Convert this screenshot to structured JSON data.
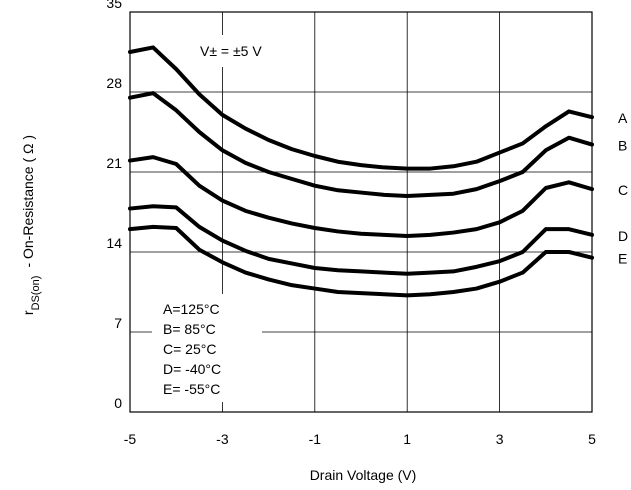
{
  "chart_data": {
    "type": "line",
    "title": "",
    "xlabel": "Drain Voltage (V)",
    "ylabel": {
      "main": "r",
      "sub": "DS(on)",
      "rest": "- On-Resistance ( Ω )"
    },
    "xlim": [
      -5,
      5
    ],
    "ylim": [
      0,
      35
    ],
    "xticks": [
      -5,
      -3,
      -1,
      1,
      3,
      5
    ],
    "yticks": [
      0,
      7,
      14,
      21,
      28,
      35
    ],
    "grid": true,
    "supply_note": "V± = ±5 V",
    "x": [
      -5,
      -4.5,
      -4,
      -3.5,
      -3,
      -2.5,
      -2,
      -1.5,
      -1,
      -0.5,
      0,
      0.5,
      1,
      1.5,
      2,
      2.5,
      3,
      3.5,
      4,
      4.5,
      5
    ],
    "series": [
      {
        "name": "A",
        "values": [
          31.5,
          31.9,
          30.0,
          27.8,
          26.0,
          24.8,
          23.8,
          23.0,
          22.4,
          21.9,
          21.6,
          21.4,
          21.3,
          21.3,
          21.5,
          21.9,
          22.7,
          23.5,
          25.0,
          26.3,
          25.8
        ]
      },
      {
        "name": "B",
        "values": [
          27.5,
          27.9,
          26.4,
          24.5,
          22.9,
          21.8,
          21.0,
          20.4,
          19.8,
          19.4,
          19.2,
          19.0,
          18.9,
          19.0,
          19.1,
          19.5,
          20.2,
          21.0,
          22.9,
          24.0,
          23.4
        ]
      },
      {
        "name": "C",
        "values": [
          22.0,
          22.3,
          21.7,
          19.8,
          18.5,
          17.6,
          17.0,
          16.5,
          16.1,
          15.8,
          15.6,
          15.5,
          15.4,
          15.5,
          15.7,
          16.0,
          16.6,
          17.6,
          19.6,
          20.1,
          19.5
        ]
      },
      {
        "name": "D",
        "values": [
          17.8,
          18.0,
          17.9,
          16.2,
          15.0,
          14.1,
          13.4,
          13.0,
          12.6,
          12.4,
          12.3,
          12.2,
          12.1,
          12.2,
          12.3,
          12.7,
          13.2,
          14.0,
          16.0,
          16.0,
          15.5
        ]
      },
      {
        "name": "E",
        "values": [
          16.0,
          16.2,
          16.1,
          14.2,
          13.1,
          12.2,
          11.6,
          11.1,
          10.8,
          10.5,
          10.4,
          10.3,
          10.2,
          10.3,
          10.5,
          10.8,
          11.4,
          12.2,
          14.0,
          14.0,
          13.5
        ]
      }
    ],
    "legend": {
      "placement": "bottom-left",
      "entries": [
        "A=125°C",
        "B= 85°C",
        "C= 25°C",
        "D=  -40°C",
        "E=  -55°C"
      ]
    }
  }
}
